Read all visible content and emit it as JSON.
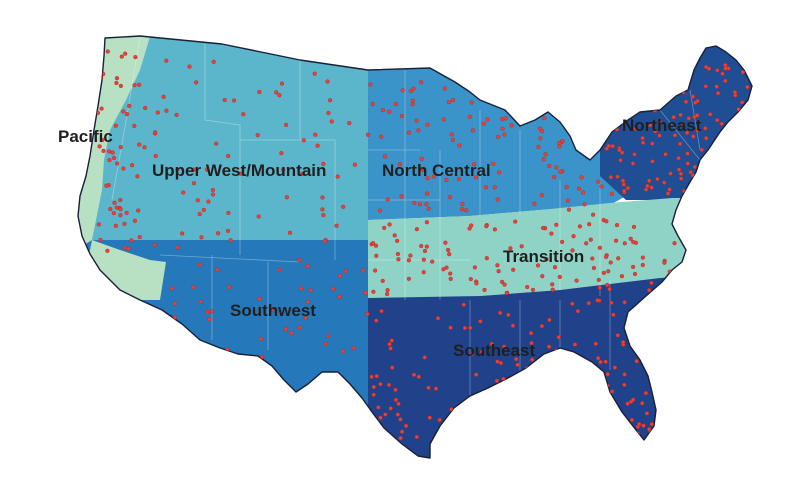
{
  "map": {
    "regions": [
      {
        "name": "Pacific",
        "color": "#b8e0c2"
      },
      {
        "name": "Upper West/Mountain",
        "color": "#5bb6cb"
      },
      {
        "name": "North Central",
        "color": "#3a93c9"
      },
      {
        "name": "Northeast",
        "color": "#1f4e94"
      },
      {
        "name": "Transition",
        "color": "#8fd3c6"
      },
      {
        "name": "Southwest",
        "color": "#2579bb"
      },
      {
        "name": "Southeast",
        "color": "#20428a"
      }
    ],
    "marker_color": "#e8413a",
    "outline_color": "#1a1f3a"
  }
}
